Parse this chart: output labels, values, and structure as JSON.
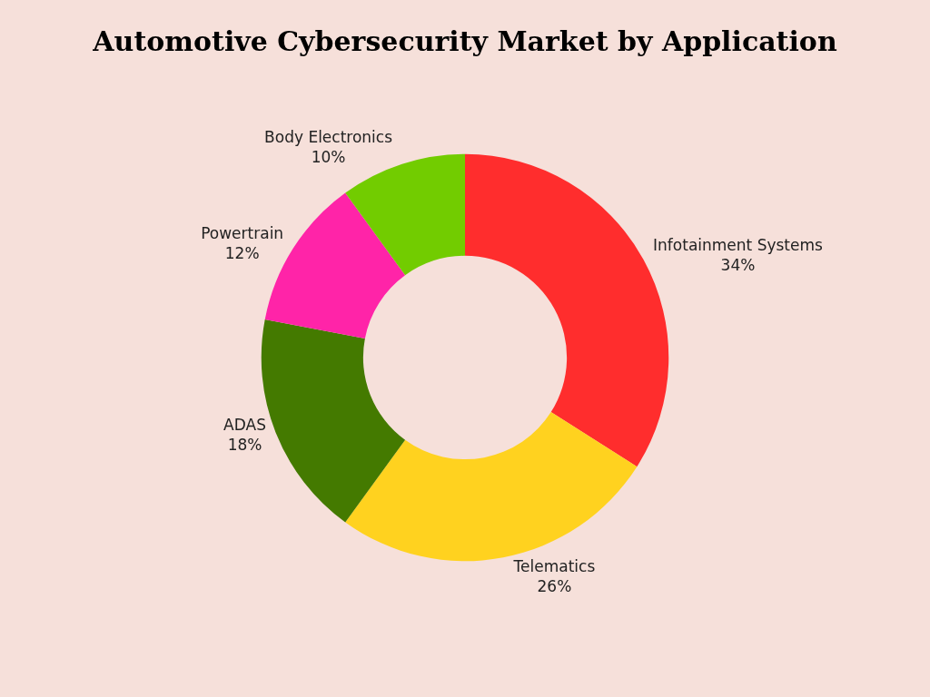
{
  "chart_data": {
    "type": "donut",
    "title": "Automotive Cybersecurity Market by Application",
    "categories": [
      "Infotainment Systems",
      "Telematics",
      "ADAS",
      "Powertrain",
      "Body Electronics"
    ],
    "values": [
      34,
      26,
      18,
      12,
      10
    ],
    "value_labels": [
      "34%",
      "26%",
      "18%",
      "12%",
      "10%"
    ],
    "colors": [
      "#ff2d2d",
      "#ffd21f",
      "#447a00",
      "#ff24a8",
      "#72cc00"
    ],
    "legend": false
  }
}
